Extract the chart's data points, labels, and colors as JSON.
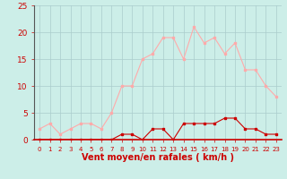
{
  "hours": [
    0,
    1,
    2,
    3,
    4,
    5,
    6,
    7,
    8,
    9,
    10,
    11,
    12,
    13,
    14,
    15,
    16,
    17,
    18,
    19,
    20,
    21,
    22,
    23
  ],
  "wind_avg": [
    0,
    0,
    0,
    0,
    0,
    0,
    0,
    0,
    1,
    1,
    0,
    2,
    2,
    0,
    3,
    3,
    3,
    3,
    4,
    4,
    2,
    2,
    1,
    1
  ],
  "wind_gust": [
    2,
    3,
    1,
    2,
    3,
    3,
    2,
    5,
    10,
    10,
    15,
    16,
    19,
    19,
    15,
    21,
    18,
    19,
    16,
    18,
    13,
    13,
    10,
    8
  ],
  "color_avg": "#cc0000",
  "color_gust": "#ffaaaa",
  "bg_color": "#cceee8",
  "grid_color": "#aacccc",
  "xlabel": "Vent moyen/en rafales ( km/h )",
  "xlabel_color": "#cc0000",
  "xlabel_fontsize": 7,
  "tick_color": "#cc0000",
  "ylim": [
    0,
    25
  ],
  "yticks": [
    0,
    5,
    10,
    15,
    20,
    25
  ],
  "marker_size": 2.0,
  "linewidth": 0.8
}
